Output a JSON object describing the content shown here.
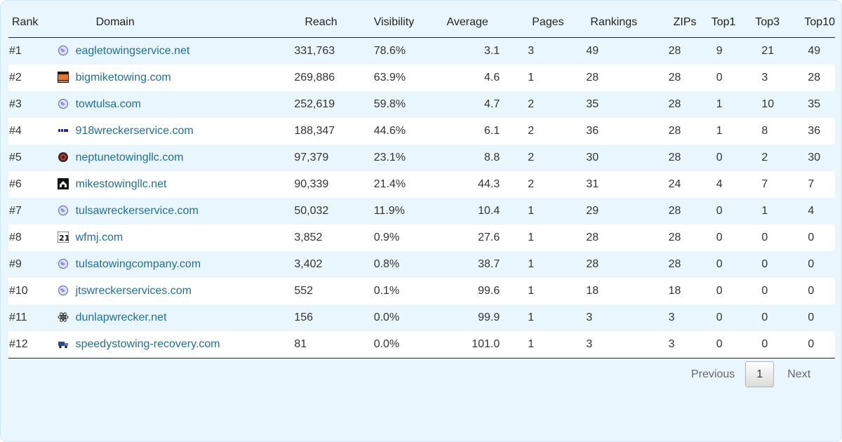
{
  "columns": [
    "Rank",
    "Domain",
    "Reach",
    "Visibility",
    "Average",
    "Pages",
    "Rankings",
    "ZIPs",
    "Top1",
    "Top3",
    "Top10"
  ],
  "rows": [
    {
      "rank": "#1",
      "icon": "globe-icon",
      "domain": "eagletowingservice.net",
      "reach": "331,763",
      "visibility": "78.6%",
      "average": "3.1",
      "pages": "3",
      "rankings": "49",
      "zips": "28",
      "top1": "9",
      "top3": "21",
      "top10": "49"
    },
    {
      "rank": "#2",
      "icon": "bigmike-logo-icon",
      "domain": "bigmiketowing.com",
      "reach": "269,886",
      "visibility": "63.9%",
      "average": "4.6",
      "pages": "1",
      "rankings": "28",
      "zips": "28",
      "top1": "0",
      "top3": "3",
      "top10": "28"
    },
    {
      "rank": "#3",
      "icon": "globe-icon",
      "domain": "towtulsa.com",
      "reach": "252,619",
      "visibility": "59.8%",
      "average": "4.7",
      "pages": "2",
      "rankings": "35",
      "zips": "28",
      "top1": "1",
      "top3": "10",
      "top10": "35"
    },
    {
      "rank": "#4",
      "icon": "918-logo-icon",
      "domain": "918wreckerservice.com",
      "reach": "188,347",
      "visibility": "44.6%",
      "average": "6.1",
      "pages": "2",
      "rankings": "36",
      "zips": "28",
      "top1": "1",
      "top3": "8",
      "top10": "36"
    },
    {
      "rank": "#5",
      "icon": "neptune-logo-icon",
      "domain": "neptunetowingllc.com",
      "reach": "97,379",
      "visibility": "23.1%",
      "average": "8.8",
      "pages": "2",
      "rankings": "30",
      "zips": "28",
      "top1": "0",
      "top3": "2",
      "top10": "30"
    },
    {
      "rank": "#6",
      "icon": "house-logo-icon",
      "domain": "mikestowingllc.net",
      "reach": "90,339",
      "visibility": "21.4%",
      "average": "44.3",
      "pages": "2",
      "rankings": "31",
      "zips": "24",
      "top1": "4",
      "top3": "7",
      "top10": "7"
    },
    {
      "rank": "#7",
      "icon": "globe-icon",
      "domain": "tulsawreckerservice.com",
      "reach": "50,032",
      "visibility": "11.9%",
      "average": "10.4",
      "pages": "1",
      "rankings": "29",
      "zips": "28",
      "top1": "0",
      "top3": "1",
      "top10": "4"
    },
    {
      "rank": "#8",
      "icon": "wfmj-logo-icon",
      "domain": "wfmj.com",
      "reach": "3,852",
      "visibility": "0.9%",
      "average": "27.6",
      "pages": "1",
      "rankings": "28",
      "zips": "28",
      "top1": "0",
      "top3": "0",
      "top10": "0"
    },
    {
      "rank": "#9",
      "icon": "globe-icon",
      "domain": "tulsatowingcompany.com",
      "reach": "3,402",
      "visibility": "0.8%",
      "average": "38.7",
      "pages": "1",
      "rankings": "28",
      "zips": "28",
      "top1": "0",
      "top3": "0",
      "top10": "0"
    },
    {
      "rank": "#10",
      "icon": "globe-icon",
      "domain": "jtswreckerservices.com",
      "reach": "552",
      "visibility": "0.1%",
      "average": "99.6",
      "pages": "1",
      "rankings": "18",
      "zips": "18",
      "top1": "0",
      "top3": "0",
      "top10": "0"
    },
    {
      "rank": "#11",
      "icon": "atom-logo-icon",
      "domain": "dunlapwrecker.net",
      "reach": "156",
      "visibility": "0.0%",
      "average": "99.9",
      "pages": "1",
      "rankings": "3",
      "zips": "3",
      "top1": "0",
      "top3": "0",
      "top10": "0"
    },
    {
      "rank": "#12",
      "icon": "truck-logo-icon",
      "domain": "speedystowing-recovery.com",
      "reach": "81",
      "visibility": "0.0%",
      "average": "101.0",
      "pages": "1",
      "rankings": "3",
      "zips": "3",
      "top1": "0",
      "top3": "0",
      "top10": "0"
    }
  ],
  "pagination": {
    "previous": "Previous",
    "current": "1",
    "next": "Next"
  },
  "colors": {
    "link": "#1f6f9a",
    "panel_bg": "#eaf6fd",
    "row_alt": "#ffffff"
  }
}
